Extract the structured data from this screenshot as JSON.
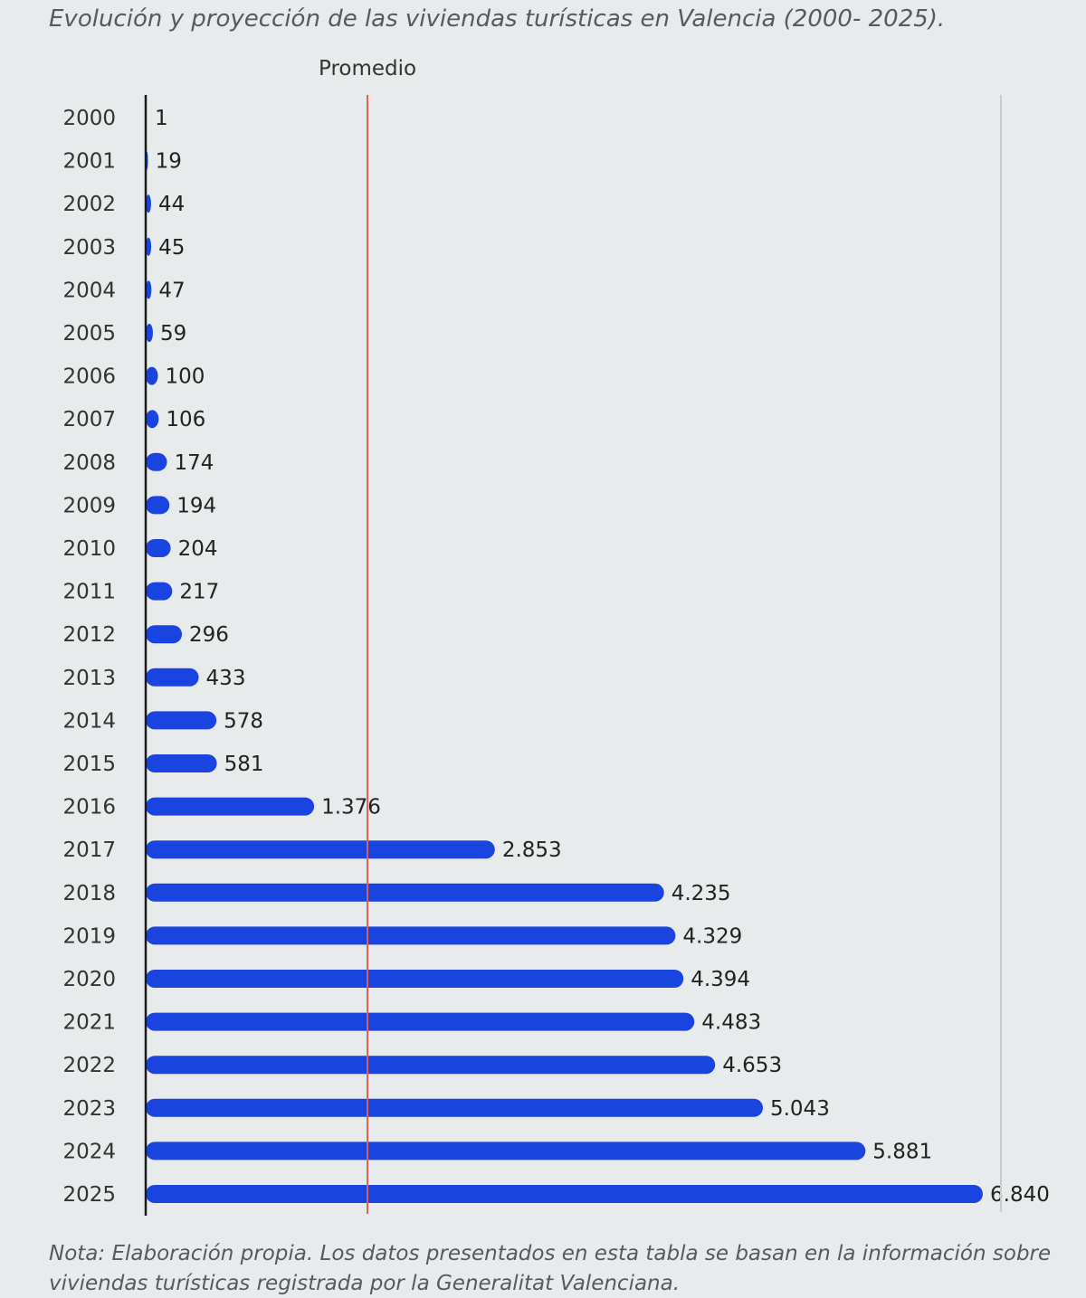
{
  "chart_data": {
    "type": "bar",
    "orientation": "horizontal",
    "title": "Evolución y proyección de las viviendas turísticas en Valencia (2000- 2025).",
    "note": "Nota: Elaboración propia. Los datos presentados en esta tabla se basan en la información sobre viviendas turísticas registrada por la Generalitat Valenciana.",
    "categories": [
      "2000",
      "2001",
      "2002",
      "2003",
      "2004",
      "2005",
      "2006",
      "2007",
      "2008",
      "2009",
      "2010",
      "2011",
      "2012",
      "2013",
      "2014",
      "2015",
      "2016",
      "2017",
      "2018",
      "2019",
      "2020",
      "2021",
      "2022",
      "2023",
      "2024",
      "2025"
    ],
    "values": [
      1,
      19,
      44,
      45,
      47,
      59,
      100,
      106,
      174,
      194,
      204,
      217,
      296,
      433,
      578,
      581,
      1376,
      2853,
      4235,
      4329,
      4394,
      4483,
      4653,
      5043,
      5881,
      6840
    ],
    "value_labels": [
      "1",
      "19",
      "44",
      "45",
      "47",
      "59",
      "100",
      "106",
      "174",
      "194",
      "204",
      "217",
      "296",
      "433",
      "578",
      "581",
      "1.376",
      "2.853",
      "4.235",
      "4.329",
      "4.394",
      "4.483",
      "4.653",
      "5.043",
      "5.881",
      "6.840"
    ],
    "reference_line": {
      "label": "Promedio",
      "value": 1812,
      "color": "#e0605a"
    },
    "xlim": [
      0,
      7000
    ],
    "grid": false,
    "legend": "none",
    "bar_color": "#1a44e0",
    "axis_color": "#1a1a1a",
    "gridline_color": "#c8cccd"
  }
}
